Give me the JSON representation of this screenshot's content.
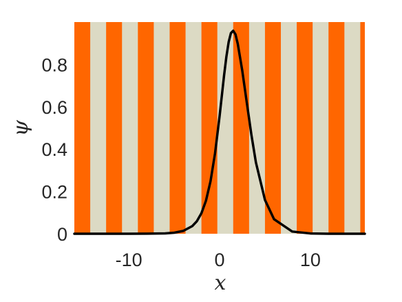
{
  "chart_data": {
    "type": "line",
    "title": "",
    "xlabel": "x",
    "ylabel": "ψ",
    "xlim": [
      -16,
      16
    ],
    "ylim": [
      0,
      1
    ],
    "x_ticks": [
      -10,
      0,
      10
    ],
    "x_tick_labels": [
      "-10",
      "0",
      "10"
    ],
    "y_ticks": [
      0,
      0.2,
      0.4,
      0.6,
      0.8
    ],
    "y_tick_labels": [
      "0",
      "0.2",
      "0.4",
      "0.6",
      "0.8"
    ],
    "grid": false,
    "background_stripes": {
      "period": 3.5,
      "orange_first_start": -16,
      "orange_width": 1.75,
      "colors": {
        "orange": "#ff6600",
        "beige": "#dcdac4"
      }
    },
    "series": [
      {
        "color": "#000000",
        "x": [
          -16,
          -14,
          -12,
          -10,
          -8,
          -6,
          -5,
          -4,
          -3,
          -2.5,
          -2,
          -1.5,
          -1,
          -0.5,
          0,
          0.25,
          0.5,
          0.75,
          1,
          1.25,
          1.5,
          1.75,
          2,
          2.5,
          3,
          3.5,
          4,
          5,
          6,
          8,
          10,
          12,
          14,
          16
        ],
        "y": [
          0,
          0,
          0,
          0.0001,
          0.0003,
          0.0018,
          0.0049,
          0.0134,
          0.0363,
          0.0594,
          0.0969,
          0.1562,
          0.2475,
          0.3799,
          0.5558,
          0.6528,
          0.7498,
          0.8368,
          0.9056,
          0.9479,
          0.9588,
          0.9421,
          0.8975,
          0.7701,
          0.6188,
          0.4688,
          0.3371,
          0.1595,
          0.0686,
          0.0104,
          0.0014,
          0.0002,
          0,
          0
        ]
      }
    ]
  }
}
